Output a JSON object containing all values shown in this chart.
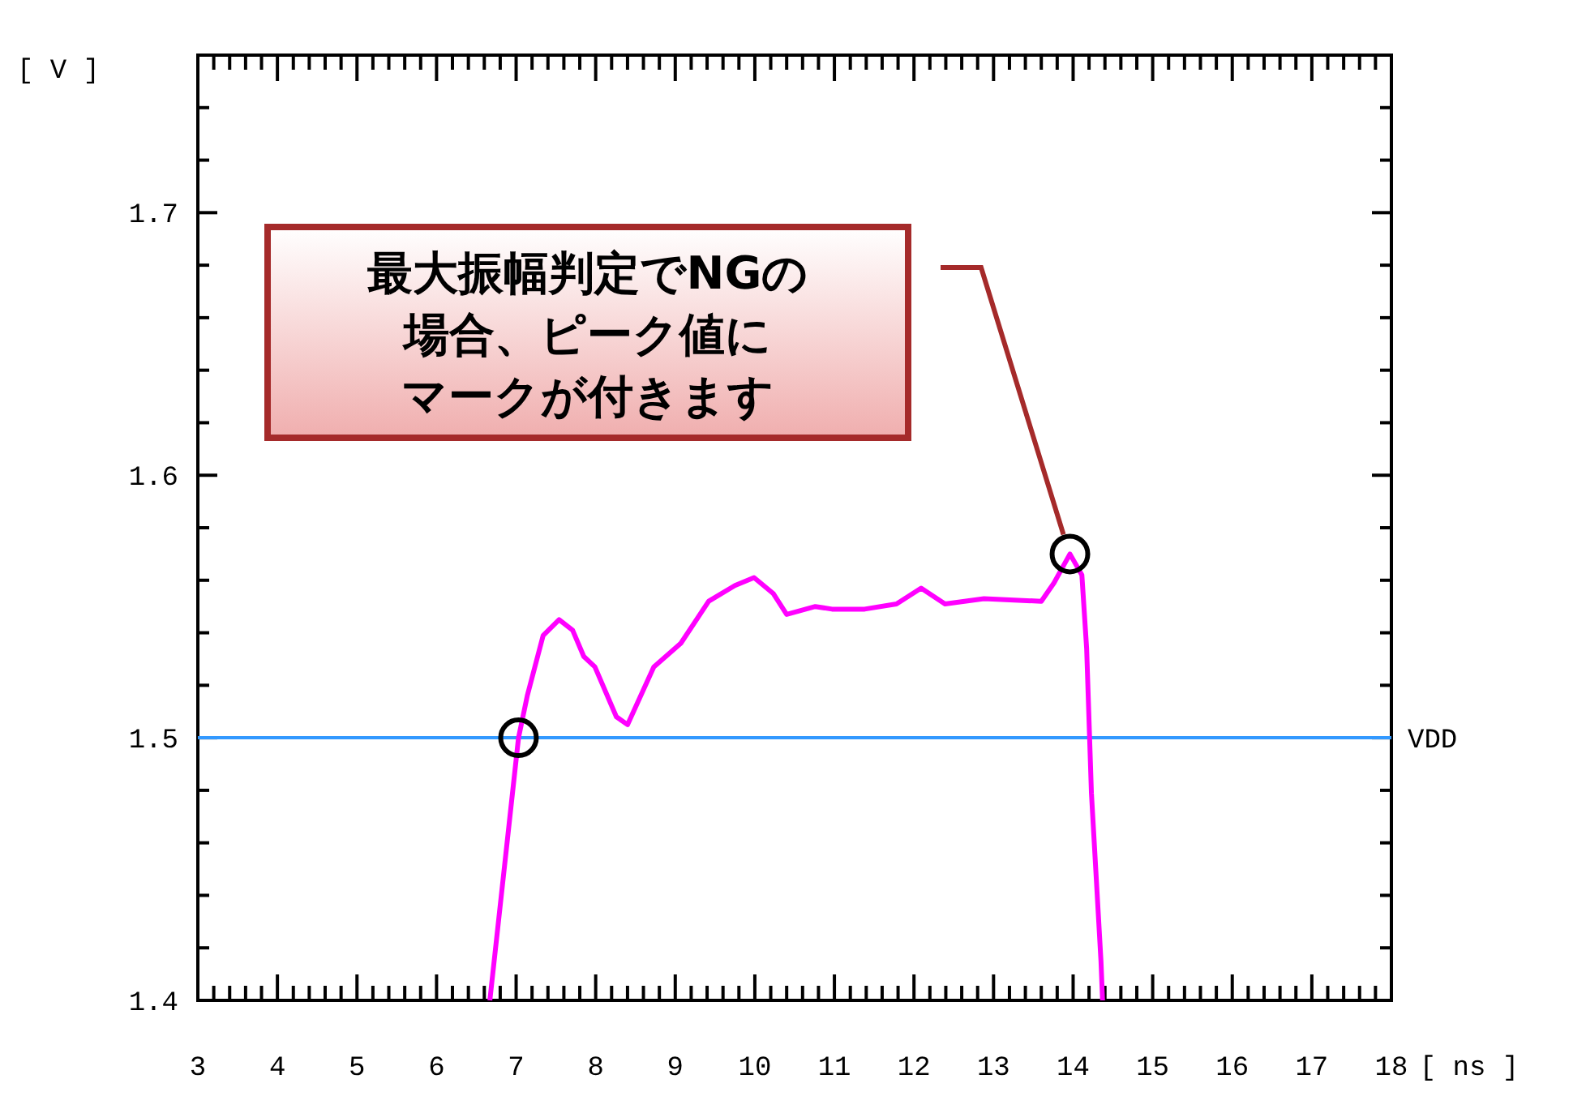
{
  "chart_data": {
    "type": "line",
    "xlabel": "[ ns ]",
    "ylabel": "[ V ]",
    "xlim": [
      3,
      18
    ],
    "ylim": [
      1.4,
      1.76
    ],
    "xticks": [
      3,
      {
        "value": 3.2,
        "label": null
      },
      {
        "value": 3.4,
        "label": null
      },
      {
        "value": 3.6,
        "label": null
      },
      {
        "value": 3.8,
        "label": null
      },
      4,
      {
        "value": 4.2,
        "label": null
      },
      {
        "value": 4.4,
        "label": null
      },
      {
        "value": 4.6,
        "label": null
      },
      {
        "value": 4.8,
        "label": null
      },
      5,
      {
        "value": 5.2,
        "label": null
      },
      {
        "value": 5.4,
        "label": null
      },
      {
        "value": 5.6,
        "label": null
      },
      {
        "value": 5.8,
        "label": null
      },
      6,
      {
        "value": 6.2,
        "label": null
      },
      {
        "value": 6.4,
        "label": null
      },
      {
        "value": 6.6,
        "label": null
      },
      {
        "value": 6.8,
        "label": null
      },
      7,
      {
        "value": 7.2,
        "label": null
      },
      {
        "value": 7.4,
        "label": null
      },
      {
        "value": 7.6,
        "label": null
      },
      {
        "value": 7.8,
        "label": null
      },
      8,
      {
        "value": 8.2,
        "label": null
      },
      {
        "value": 8.4,
        "label": null
      },
      {
        "value": 8.6,
        "label": null
      },
      {
        "value": 8.8,
        "label": null
      },
      9,
      {
        "value": 9.2,
        "label": null
      },
      {
        "value": 9.4,
        "label": null
      },
      {
        "value": 9.6,
        "label": null
      },
      {
        "value": 9.8,
        "label": null
      },
      10,
      {
        "value": 10.2,
        "label": null
      },
      {
        "value": 10.4,
        "label": null
      },
      {
        "value": 10.6,
        "label": null
      },
      {
        "value": 10.8,
        "label": null
      },
      11,
      {
        "value": 11.2,
        "label": null
      },
      {
        "value": 11.4,
        "label": null
      },
      {
        "value": 11.6,
        "label": null
      },
      {
        "value": 11.8,
        "label": null
      },
      12,
      {
        "value": 12.2,
        "label": null
      },
      {
        "value": 12.4,
        "label": null
      },
      {
        "value": 12.6,
        "label": null
      },
      {
        "value": 12.8,
        "label": null
      },
      13,
      {
        "value": 13.2,
        "label": null
      },
      {
        "value": 13.4,
        "label": null
      },
      {
        "value": 13.6,
        "label": null
      },
      {
        "value": 13.8,
        "label": null
      },
      14,
      {
        "value": 14.2,
        "label": null
      },
      {
        "value": 14.4,
        "label": null
      },
      {
        "value": 14.6,
        "label": null
      },
      {
        "value": 14.8,
        "label": null
      },
      15,
      {
        "value": 15.2,
        "label": null
      },
      {
        "value": 15.4,
        "label": null
      },
      {
        "value": 15.6,
        "label": null
      },
      {
        "value": 15.8,
        "label": null
      },
      16,
      {
        "value": 16.2,
        "label": null
      },
      {
        "value": 16.4,
        "label": null
      },
      {
        "value": 16.6,
        "label": null
      },
      {
        "value": 16.8,
        "label": null
      },
      17,
      {
        "value": 17.2,
        "label": null
      },
      {
        "value": 17.4,
        "label": null
      },
      {
        "value": 17.6,
        "label": null
      },
      {
        "value": 17.8,
        "label": null
      },
      18
    ],
    "yticks": [
      1.4,
      {
        "value": 1.42,
        "label": null
      },
      {
        "value": 1.44,
        "label": null
      },
      {
        "value": 1.46,
        "label": null
      },
      {
        "value": 1.48,
        "label": null
      },
      1.5,
      {
        "value": 1.52,
        "label": null
      },
      {
        "value": 1.54,
        "label": null
      },
      {
        "value": 1.56,
        "label": null
      },
      {
        "value": 1.58,
        "label": null
      },
      1.6,
      {
        "value": 1.62,
        "label": null
      },
      {
        "value": 1.64,
        "label": null
      },
      {
        "value": 1.66,
        "label": null
      },
      {
        "value": 1.68,
        "label": null
      },
      1.7,
      {
        "value": 1.72,
        "label": null
      },
      {
        "value": 1.74,
        "label": null
      }
    ],
    "x": [
      6.67,
      7.03,
      7.14,
      7.34,
      7.54,
      7.71,
      7.85,
      7.99,
      8.26,
      8.4,
      8.73,
      9.07,
      9.42,
      9.75,
      9.99,
      10.23,
      10.4,
      10.76,
      10.97,
      11.38,
      11.78,
      12.09,
      12.39,
      12.88,
      13.6,
      13.76,
      13.96,
      14.11,
      14.17,
      14.23,
      14.35,
      14.37
    ],
    "series": [
      {
        "color": "#ff00ff",
        "values": [
          1.4,
          1.5,
          1.516,
          1.539,
          1.545,
          1.541,
          1.531,
          1.527,
          1.508,
          1.505,
          1.527,
          1.536,
          1.552,
          1.558,
          1.561,
          1.555,
          1.547,
          1.55,
          1.549,
          1.549,
          1.551,
          1.557,
          1.551,
          1.553,
          1.552,
          1.559,
          1.57,
          1.562,
          1.534,
          1.479,
          1.415,
          1.4
        ]
      }
    ],
    "ref_lines": [
      {
        "axis": "y",
        "value": 1.5,
        "label": "VDD",
        "color": "#3399ff"
      }
    ],
    "annotations": [
      "最大振幅判定でNGの場合、ピーク値にマークが付きます"
    ],
    "grid": false,
    "marker": "none",
    "line_style": "solid"
  }
}
